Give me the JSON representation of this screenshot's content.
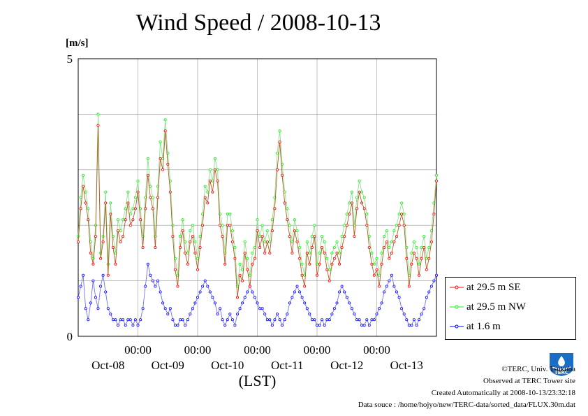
{
  "chart_data": {
    "type": "line",
    "title": "Wind Speed / 2008-10-13",
    "ylabel": "[m/s]",
    "xlabel": "(LST)",
    "ylim": [
      0,
      5
    ],
    "yticks": [
      "0",
      "5"
    ],
    "xlim_hours": [
      0,
      144
    ],
    "x_tick_time_label": "00:00",
    "x_day_labels": [
      "Oct-08",
      "Oct-09",
      "Oct-10",
      "Oct-11",
      "Oct-12",
      "Oct-13"
    ],
    "grid": true,
    "legend_position": "right",
    "series": [
      {
        "name": "at 29.5 m SE",
        "color": "#ff0000",
        "line_color": "#b45a1e",
        "x": [
          0,
          1,
          2,
          3,
          4,
          5,
          6,
          7,
          8,
          9,
          10,
          11,
          12,
          13,
          14,
          15,
          16,
          17,
          18,
          19,
          20,
          21,
          22,
          23,
          24,
          25,
          26,
          27,
          28,
          29,
          30,
          31,
          32,
          33,
          34,
          35,
          36,
          37,
          38,
          39,
          40,
          41,
          42,
          43,
          44,
          45,
          46,
          47,
          48,
          49,
          50,
          51,
          52,
          53,
          54,
          55,
          56,
          57,
          58,
          59,
          60,
          61,
          62,
          63,
          64,
          65,
          66,
          67,
          68,
          69,
          70,
          71,
          72,
          73,
          74,
          75,
          76,
          77,
          78,
          79,
          80,
          81,
          82,
          83,
          84,
          85,
          86,
          87,
          88,
          89,
          90,
          91,
          92,
          93,
          94,
          95,
          96,
          97,
          98,
          99,
          100,
          101,
          102,
          103,
          104,
          105,
          106,
          107,
          108,
          109,
          110,
          111,
          112,
          113,
          114,
          115,
          116,
          117,
          118,
          119,
          120,
          121,
          122,
          123,
          124,
          125,
          126,
          127,
          128,
          129,
          130,
          131,
          132,
          133,
          134,
          135,
          136,
          137,
          138,
          139,
          140,
          141,
          142,
          143,
          144
        ],
        "values": [
          1.7,
          2.3,
          2.7,
          2.4,
          2.1,
          1.5,
          1.3,
          1.8,
          3.8,
          1.4,
          1.7,
          2.4,
          1.1,
          2.2,
          1.6,
          1.3,
          1.9,
          1.7,
          1.8,
          2.1,
          2.4,
          2.0,
          2.1,
          2.3,
          2.6,
          2.1,
          1.6,
          2.3,
          2.9,
          2.5,
          2.3,
          1.6,
          2.5,
          3.2,
          3.0,
          3.7,
          3.1,
          2.6,
          1.8,
          1.2,
          0.9,
          1.6,
          1.9,
          1.5,
          1.3,
          1.7,
          1.8,
          1.5,
          1.2,
          1.6,
          2.0,
          2.5,
          2.4,
          2.8,
          2.6,
          3.0,
          2.8,
          2.0,
          1.8,
          1.3,
          2.0,
          2.0,
          1.7,
          1.4,
          0.7,
          1.1,
          1.0,
          1.5,
          1.2,
          0.9,
          1.3,
          1.4,
          1.9,
          1.6,
          1.8,
          1.5,
          1.7,
          1.5,
          1.9,
          2.3,
          3.0,
          3.5,
          2.9,
          2.4,
          2.1,
          1.8,
          1.5,
          1.9,
          1.7,
          1.4,
          1.1,
          0.9,
          1.5,
          1.3,
          1.6,
          1.8,
          1.1,
          1.3,
          1.6,
          1.5,
          1.2,
          1.0,
          1.3,
          1.4,
          1.5,
          1.3,
          1.6,
          1.8,
          2.0,
          2.2,
          2.4,
          1.8,
          2.3,
          2.6,
          2.4,
          2.3,
          2.0,
          1.6,
          1.3,
          1.1,
          1.2,
          0.9,
          1.3,
          1.6,
          1.7,
          1.4,
          1.5,
          1.7,
          1.8,
          2.0,
          2.2,
          2.0,
          1.4,
          0.9,
          1.3,
          1.5,
          1.4,
          1.1,
          1.4,
          1.6,
          1.2,
          1.4,
          1.7,
          2.2,
          2.8
        ]
      },
      {
        "name": "at 29.5 m NW",
        "color": "#00ff00",
        "line_color": "#8ce08c",
        "x": [
          0,
          1,
          2,
          3,
          4,
          5,
          6,
          7,
          8,
          9,
          10,
          11,
          12,
          13,
          14,
          15,
          16,
          17,
          18,
          19,
          20,
          21,
          22,
          23,
          24,
          25,
          26,
          27,
          28,
          29,
          30,
          31,
          32,
          33,
          34,
          35,
          36,
          37,
          38,
          39,
          40,
          41,
          42,
          43,
          44,
          45,
          46,
          47,
          48,
          49,
          50,
          51,
          52,
          53,
          54,
          55,
          56,
          57,
          58,
          59,
          60,
          61,
          62,
          63,
          64,
          65,
          66,
          67,
          68,
          69,
          70,
          71,
          72,
          73,
          74,
          75,
          76,
          77,
          78,
          79,
          80,
          81,
          82,
          83,
          84,
          85,
          86,
          87,
          88,
          89,
          90,
          91,
          92,
          93,
          94,
          95,
          96,
          97,
          98,
          99,
          100,
          101,
          102,
          103,
          104,
          105,
          106,
          107,
          108,
          109,
          110,
          111,
          112,
          113,
          114,
          115,
          116,
          117,
          118,
          119,
          120,
          121,
          122,
          123,
          124,
          125,
          126,
          127,
          128,
          129,
          130,
          131,
          132,
          133,
          134,
          135,
          136,
          137,
          138,
          139,
          140,
          141,
          142,
          143,
          144
        ],
        "values": [
          1.8,
          2.5,
          2.9,
          2.6,
          2.3,
          1.7,
          1.4,
          2.0,
          4.0,
          1.5,
          1.8,
          2.6,
          1.3,
          2.4,
          1.8,
          1.5,
          2.1,
          1.9,
          2.1,
          2.3,
          2.6,
          2.2,
          2.3,
          2.5,
          2.8,
          2.3,
          1.8,
          2.5,
          3.2,
          2.7,
          2.5,
          1.8,
          2.7,
          3.5,
          3.2,
          3.9,
          3.3,
          2.8,
          2.0,
          1.4,
          1.1,
          1.8,
          2.1,
          1.7,
          1.5,
          1.9,
          2.0,
          1.7,
          1.4,
          1.8,
          2.2,
          2.7,
          2.6,
          3.0,
          2.8,
          3.2,
          3.0,
          2.2,
          2.0,
          1.5,
          2.2,
          2.2,
          1.9,
          1.6,
          0.9,
          1.3,
          1.2,
          1.7,
          1.4,
          1.1,
          1.5,
          1.6,
          2.1,
          1.8,
          2.0,
          1.7,
          1.9,
          1.7,
          2.1,
          2.5,
          3.3,
          3.7,
          3.1,
          2.6,
          2.3,
          2.0,
          1.7,
          2.1,
          1.9,
          1.6,
          1.3,
          1.1,
          1.7,
          1.5,
          1.8,
          2.0,
          1.3,
          1.5,
          1.8,
          1.7,
          1.4,
          1.2,
          1.5,
          1.6,
          1.7,
          1.5,
          1.8,
          2.0,
          2.2,
          2.4,
          2.6,
          2.0,
          2.5,
          2.8,
          2.6,
          2.5,
          2.2,
          1.8,
          1.5,
          1.3,
          1.4,
          1.1,
          1.5,
          1.8,
          1.9,
          1.6,
          1.7,
          1.9,
          2.0,
          2.2,
          2.4,
          2.2,
          1.6,
          1.1,
          1.5,
          1.7,
          1.6,
          1.3,
          1.6,
          1.8,
          1.4,
          1.6,
          1.9,
          2.4,
          2.9
        ]
      },
      {
        "name": "at 1.6 m",
        "color": "#0000ff",
        "line_color": "#7070ff",
        "x": [
          0,
          1,
          2,
          3,
          4,
          5,
          6,
          7,
          8,
          9,
          10,
          11,
          12,
          13,
          14,
          15,
          16,
          17,
          18,
          19,
          20,
          21,
          22,
          23,
          24,
          25,
          26,
          27,
          28,
          29,
          30,
          31,
          32,
          33,
          34,
          35,
          36,
          37,
          38,
          39,
          40,
          41,
          42,
          43,
          44,
          45,
          46,
          47,
          48,
          49,
          50,
          51,
          52,
          53,
          54,
          55,
          56,
          57,
          58,
          59,
          60,
          61,
          62,
          63,
          64,
          65,
          66,
          67,
          68,
          69,
          70,
          71,
          72,
          73,
          74,
          75,
          76,
          77,
          78,
          79,
          80,
          81,
          82,
          83,
          84,
          85,
          86,
          87,
          88,
          89,
          90,
          91,
          92,
          93,
          94,
          95,
          96,
          97,
          98,
          99,
          100,
          101,
          102,
          103,
          104,
          105,
          106,
          107,
          108,
          109,
          110,
          111,
          112,
          113,
          114,
          115,
          116,
          117,
          118,
          119,
          120,
          121,
          122,
          123,
          124,
          125,
          126,
          127,
          128,
          129,
          130,
          131,
          132,
          133,
          134,
          135,
          136,
          137,
          138,
          139,
          140,
          141,
          142,
          143,
          144
        ],
        "values": [
          0.7,
          0.9,
          1.1,
          0.5,
          0.3,
          0.6,
          1.0,
          0.7,
          0.5,
          0.9,
          1.1,
          0.8,
          0.5,
          0.4,
          0.3,
          0.3,
          0.2,
          0.3,
          0.3,
          0.2,
          0.3,
          0.3,
          0.2,
          0.3,
          0.2,
          0.3,
          0.5,
          0.9,
          1.3,
          1.1,
          1.0,
          0.9,
          1.0,
          0.8,
          0.6,
          0.5,
          0.4,
          0.5,
          0.3,
          0.2,
          0.2,
          0.3,
          0.3,
          0.2,
          0.3,
          0.4,
          0.5,
          0.6,
          0.7,
          0.8,
          0.9,
          1.0,
          0.9,
          0.8,
          0.7,
          0.6,
          0.4,
          0.5,
          0.3,
          0.2,
          0.3,
          0.4,
          0.3,
          0.2,
          0.4,
          0.5,
          0.6,
          0.7,
          0.8,
          0.9,
          0.8,
          0.7,
          0.6,
          0.5,
          0.5,
          0.4,
          0.3,
          0.3,
          0.2,
          0.3,
          0.4,
          0.3,
          0.2,
          0.3,
          0.4,
          0.6,
          0.7,
          0.8,
          0.9,
          0.8,
          0.7,
          0.6,
          0.5,
          0.4,
          0.3,
          0.3,
          0.2,
          0.2,
          0.3,
          0.2,
          0.3,
          0.3,
          0.4,
          0.5,
          0.6,
          0.8,
          0.9,
          0.8,
          0.7,
          0.6,
          0.5,
          0.4,
          0.3,
          0.3,
          0.2,
          0.2,
          0.3,
          0.2,
          0.3,
          0.3,
          0.4,
          0.5,
          0.6,
          0.8,
          0.9,
          1.0,
          1.1,
          0.9,
          0.8,
          0.7,
          0.5,
          0.4,
          0.3,
          0.2,
          0.2,
          0.3,
          0.2,
          0.3,
          0.4,
          0.5,
          0.7,
          0.8,
          0.9,
          1.0,
          1.1
        ]
      }
    ]
  },
  "credits": {
    "copyright": "©TERC, Univ. Tsukuba",
    "site": "Observed at TERC Tower site",
    "created": "Created Automatically at 2008-10-13/23:32:18",
    "source": "Data souce : /home/hojyo/new/TERC-data/sorted_data/FLUX.30m.dat"
  },
  "logo": {
    "name": "terc-logo",
    "text": "TERC",
    "color": "#1a6ec8"
  }
}
